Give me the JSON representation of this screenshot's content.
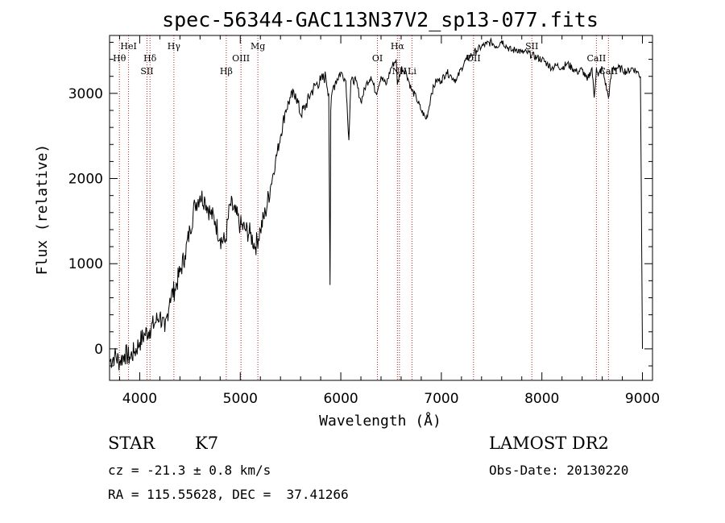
{
  "chart_data": {
    "type": "line",
    "title": "spec-56344-GAC113N37V2_sp13-077.fits",
    "xlabel": "Wavelength (Å)",
    "ylabel": "Flux (relative)",
    "xlim": [
      3700,
      9100
    ],
    "ylim": [
      -370,
      3680
    ],
    "xticks": [
      4000,
      5000,
      6000,
      7000,
      8000,
      9000
    ],
    "yticks": [
      0,
      1000,
      2000,
      3000
    ],
    "grid": false,
    "series": [
      {
        "x": [
          3700,
          3750,
          3800,
          3850,
          3900,
          3950,
          4000,
          4050,
          4100,
          4150,
          4200,
          4250,
          4300,
          4350,
          4400,
          4450,
          4500,
          4550,
          4600,
          4650,
          4700,
          4750,
          4800,
          4850,
          4900,
          4950,
          5000,
          5050,
          5100,
          5150,
          5200,
          5250,
          5300,
          5350,
          5400,
          5450,
          5500,
          5550,
          5600,
          5650,
          5700,
          5750,
          5800,
          5850,
          5880,
          5893,
          5900,
          5920,
          5950,
          6000,
          6050,
          6080,
          6100,
          6150,
          6200,
          6250,
          6300,
          6350,
          6400,
          6450,
          6500,
          6550,
          6563,
          6600,
          6650,
          6700,
          6750,
          6800,
          6850,
          6880,
          6900,
          6950,
          7000,
          7050,
          7100,
          7150,
          7200,
          7250,
          7300,
          7350,
          7400,
          7450,
          7500,
          7550,
          7600,
          7650,
          7700,
          7750,
          7800,
          7850,
          7900,
          7950,
          8000,
          8050,
          8100,
          8150,
          8200,
          8250,
          8300,
          8350,
          8400,
          8450,
          8498,
          8520,
          8542,
          8560,
          8600,
          8662,
          8700,
          8750,
          8800,
          8850,
          8900,
          8950,
          8980,
          9000
        ],
        "y": [
          -150,
          -80,
          -150,
          -60,
          -100,
          -30,
          80,
          170,
          230,
          300,
          400,
          200,
          600,
          700,
          900,
          1100,
          1400,
          1700,
          1800,
          1750,
          1600,
          1500,
          1300,
          1250,
          1700,
          1600,
          1450,
          1400,
          1350,
          1200,
          1400,
          1600,
          1900,
          2200,
          2500,
          2800,
          2950,
          3000,
          2750,
          2850,
          3000,
          3100,
          3150,
          3200,
          3000,
          750,
          2800,
          3050,
          3150,
          3250,
          3150,
          2450,
          3150,
          3150,
          2900,
          3100,
          3200,
          3000,
          3200,
          3100,
          3300,
          3400,
          3100,
          3300,
          3250,
          3050,
          2950,
          2800,
          2700,
          2850,
          3000,
          3150,
          3150,
          3250,
          3200,
          3150,
          3300,
          3400,
          3450,
          3500,
          3550,
          3580,
          3600,
          3550,
          3620,
          3550,
          3500,
          3520,
          3480,
          3480,
          3450,
          3420,
          3400,
          3350,
          3300,
          3330,
          3300,
          3350,
          3300,
          3250,
          3280,
          3150,
          3300,
          2950,
          3300,
          3200,
          3300,
          2950,
          3300,
          3300,
          3280,
          3250,
          3300,
          3250,
          3200,
          0
        ]
      }
    ],
    "lines": [
      {
        "label": "Hθ",
        "x": 3798
      },
      {
        "label": "HeI",
        "x": 3889
      },
      {
        "label": "Hδ",
        "x": 4102
      },
      {
        "label": "SII",
        "x": 4072
      },
      {
        "label": "Hγ",
        "x": 4340
      },
      {
        "label": "Hβ",
        "x": 4861
      },
      {
        "label": "OIII",
        "x": 5007
      },
      {
        "label": "Mg",
        "x": 5175
      },
      {
        "label": "OI",
        "x": 6364
      },
      {
        "label": "NII",
        "x": 6583
      },
      {
        "label": "Hα",
        "x": 6563
      },
      {
        "label": "Li",
        "x": 6708
      },
      {
        "label": "OII",
        "x": 7320
      },
      {
        "label": "SII",
        "x": 7900
      },
      {
        "label": "CaII",
        "x": 8542
      },
      {
        "label": "CaII",
        "x": 8662
      }
    ]
  },
  "info": {
    "class_label": "STAR",
    "subclass": "K7",
    "survey": "LAMOST DR2",
    "cz": "cz = -21.3 ± 0.8 km/s",
    "obs_date": "Obs-Date: 20130220",
    "coords": "RA = 115.55628, DEC =  37.41266"
  }
}
